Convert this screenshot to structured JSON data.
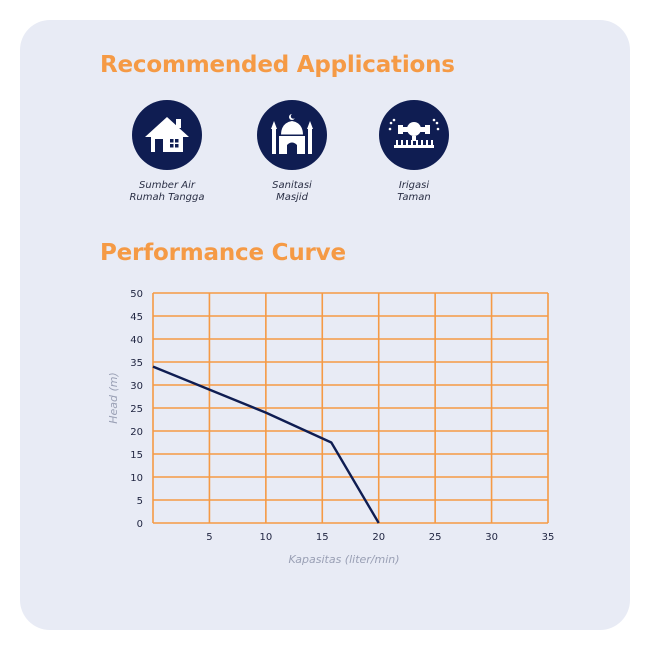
{
  "sections": {
    "applications_title": "Recommended Applications",
    "performance_title": "Performance Curve"
  },
  "applications": [
    {
      "icon": "house-icon",
      "line1": "Sumber Air",
      "line2": "Rumah Tangga"
    },
    {
      "icon": "mosque-icon",
      "line1": "Sanitasi",
      "line2": "Masjid"
    },
    {
      "icon": "garden-sprinkler-icon",
      "line1": "Irigasi",
      "line2": "Taman"
    }
  ],
  "colors": {
    "accent": "#f59a45",
    "icon_bg": "#0f1d52",
    "curve": "#0f1d52",
    "grid": "#f59a45",
    "card_bg": "#e8ebf5"
  },
  "chart_data": {
    "type": "line",
    "title": "",
    "xlabel": "Kapasitas (liter/min)",
    "ylabel": "Head (m)",
    "xlim": [
      0,
      35
    ],
    "ylim": [
      0,
      50
    ],
    "x_ticks": [
      5,
      10,
      15,
      20,
      25,
      30,
      35
    ],
    "y_ticks": [
      0,
      5,
      10,
      15,
      20,
      25,
      30,
      35,
      40,
      45,
      50
    ],
    "grid": true,
    "series": [
      {
        "x": [
          0,
          5,
          10,
          15.8,
          20
        ],
        "y": [
          34,
          29,
          24,
          17.5,
          0
        ]
      }
    ]
  }
}
